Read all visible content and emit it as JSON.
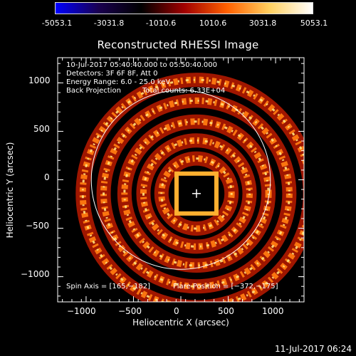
{
  "colorbar": {
    "ticks": [
      "-5053.1",
      "-3031.8",
      "-1010.6",
      "1010.6",
      "3031.8",
      "5053.1"
    ],
    "stops": [
      "#0000ff",
      "#1a0050",
      "#000000",
      "#a00000",
      "#ff6000",
      "#ffd060",
      "#ffffff"
    ]
  },
  "chart_data": {
    "type": "heatmap",
    "title": "Reconstructed RHESSI Image",
    "xlabel": "Heliocentric X (arcsec)",
    "ylabel": "Heliocentric Y (arcsec)",
    "xlim": [
      -1300,
      1300
    ],
    "ylim": [
      -1260,
      1260
    ],
    "xticks": [
      -1000,
      -500,
      0,
      500,
      1000
    ],
    "yticks": [
      -1000,
      -500,
      0,
      500,
      1000
    ],
    "xtick_labels": [
      "−1000",
      "−500",
      "0",
      "500",
      "1000"
    ],
    "ytick_labels": [
      "−1000",
      "−500",
      "0",
      "500",
      "1000"
    ],
    "value_range": [
      -5053.1,
      5053.1
    ],
    "solar_limb_radius_arcsec": 945,
    "solar_limb_center": [
      0,
      0
    ],
    "cross_marker": [
      165,
      -142
    ],
    "ring_radii_arcsec": [
      60,
      370,
      560,
      760,
      980,
      1200
    ],
    "ring_center": [
      165,
      -142
    ],
    "info_lines": [
      "10-Jul-2017 05:40:40.000 to 05:50:40.000",
      "Detectors: 3F 6F 8F, Att 0",
      "Energy Range: 6.0 - 25.0 keV"
    ],
    "method": "Back Projection",
    "total_counts": "Total counts: 6.33E+04",
    "spin_axis": "Spin Axis = [165,−182]",
    "flare_position": "Flare Position = [−372,−175]"
  },
  "timestamp": "11-Jul-2017 06:24"
}
